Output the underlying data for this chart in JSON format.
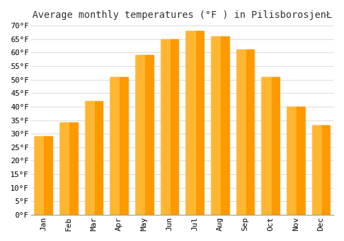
{
  "months": [
    "Jan",
    "Feb",
    "Mar",
    "Apr",
    "May",
    "Jun",
    "Jul",
    "Aug",
    "Sep",
    "Oct",
    "Nov",
    "Dec"
  ],
  "values": [
    29,
    34,
    42,
    51,
    59,
    65,
    68,
    66,
    61,
    51,
    40,
    33
  ],
  "bar_color_light": "#FFB733",
  "bar_color_dark": "#FF9900",
  "title": "Average monthly temperatures (°F ) in PilisborosjenŁ",
  "ylim": [
    0,
    70
  ],
  "ytick_step": 5,
  "background_color": "#ffffff",
  "grid_color": "#dddddd",
  "title_fontsize": 10,
  "tick_fontsize": 8,
  "title_font": "monospace",
  "tick_font": "monospace"
}
